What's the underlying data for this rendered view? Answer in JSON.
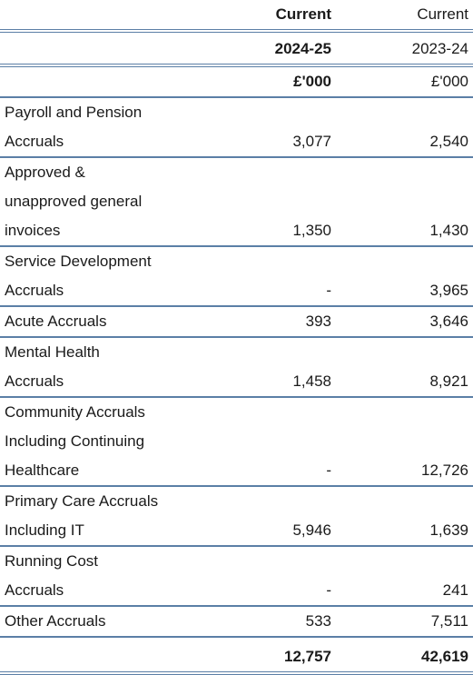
{
  "header": {
    "row1": {
      "current": "Current",
      "prior": "Current"
    },
    "row2": {
      "current": "2024-25",
      "prior": "2023-24"
    },
    "row3": {
      "current": "£'000",
      "prior": "£'000"
    }
  },
  "rows": [
    {
      "lines": [
        "Payroll and Pension",
        "Accruals"
      ],
      "current": "3,077",
      "prior": "2,540"
    },
    {
      "lines": [
        "Approved &",
        "unapproved general",
        "invoices"
      ],
      "current": "1,350",
      "prior": "1,430"
    },
    {
      "lines": [
        "Service Development",
        "Accruals"
      ],
      "current": "-",
      "prior": "3,965"
    },
    {
      "lines": [
        "Acute Accruals"
      ],
      "current": "393",
      "prior": "3,646"
    },
    {
      "lines": [
        "Mental Health",
        "Accruals"
      ],
      "current": "1,458",
      "prior": "8,921"
    },
    {
      "lines": [
        "Community Accruals",
        "Including Continuing",
        "Healthcare"
      ],
      "current": "-",
      "prior": "12,726"
    },
    {
      "lines": [
        "Primary Care Accruals",
        "Including IT"
      ],
      "current": "5,946",
      "prior": "1,639"
    },
    {
      "lines": [
        "Running Cost",
        "Accruals"
      ],
      "current": "-",
      "prior": "241"
    },
    {
      "lines": [
        "Other Accruals"
      ],
      "current": "533",
      "prior": "7,511"
    }
  ],
  "total": {
    "current": "12,757",
    "prior": "42,619"
  }
}
